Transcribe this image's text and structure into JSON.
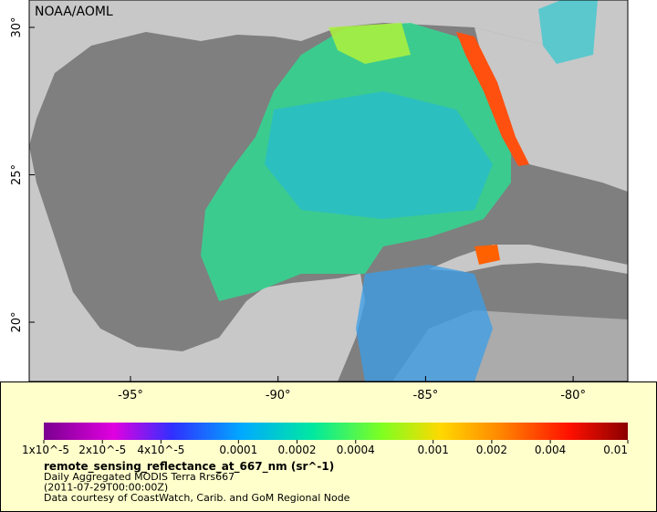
{
  "header": {
    "title": "NOAA/AOML"
  },
  "map": {
    "lon_ticks": [
      "-95°",
      "-90°",
      "-85°",
      "-80°"
    ],
    "lat_ticks": [
      "30°",
      "25°",
      "20°"
    ]
  },
  "legend": {
    "ticks": [
      "1x10^-5",
      "2x10^-5",
      "4x10^-5",
      "0.0001",
      "0.0002",
      "0.0004",
      "0.001",
      "0.002",
      "0.004",
      "0.01"
    ],
    "variable": "remote_sensing_reflectance_at_667_nm (sr^-1)",
    "lines": [
      "Daily Aggregated MODIS Terra Rrs667",
      "(2011-07-29T00:00:00Z)",
      "Data courtesy of CoastWatch, Carib. and GoM Regional Node"
    ]
  }
}
